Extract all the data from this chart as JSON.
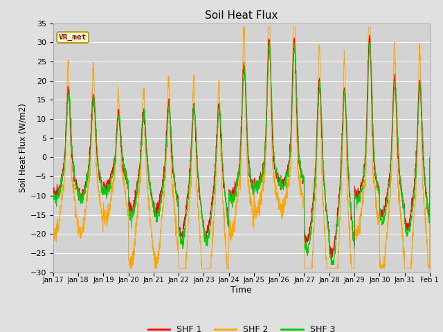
{
  "title": "Soil Heat Flux",
  "xlabel": "Time",
  "ylabel": "Soil Heat Flux (W/m2)",
  "ylim": [
    -30,
    35
  ],
  "yticks": [
    -30,
    -25,
    -20,
    -15,
    -10,
    -5,
    0,
    5,
    10,
    15,
    20,
    25,
    30,
    35
  ],
  "xtick_labels": [
    "Jan 17",
    "Jan 18",
    "Jan 19",
    "Jan 20",
    "Jan 21",
    "Jan 22",
    "Jan 23",
    "Jan 24",
    "Jan 25",
    "Jan 26",
    "Jan 27",
    "Jan 28",
    "Jan 29",
    "Jan 30",
    "Jan 31",
    "Feb 1"
  ],
  "colors": {
    "SHF 1": "#ff0000",
    "SHF 2": "#ffa500",
    "SHF 3": "#00cc00"
  },
  "annotation_text": "VR_met",
  "annotation_color": "#8b0000",
  "bg_color": "#e0e0e0",
  "plot_bg_color": "#d3d3d3",
  "grid_color": "#ffffff",
  "n_days": 15,
  "points_per_day": 144
}
